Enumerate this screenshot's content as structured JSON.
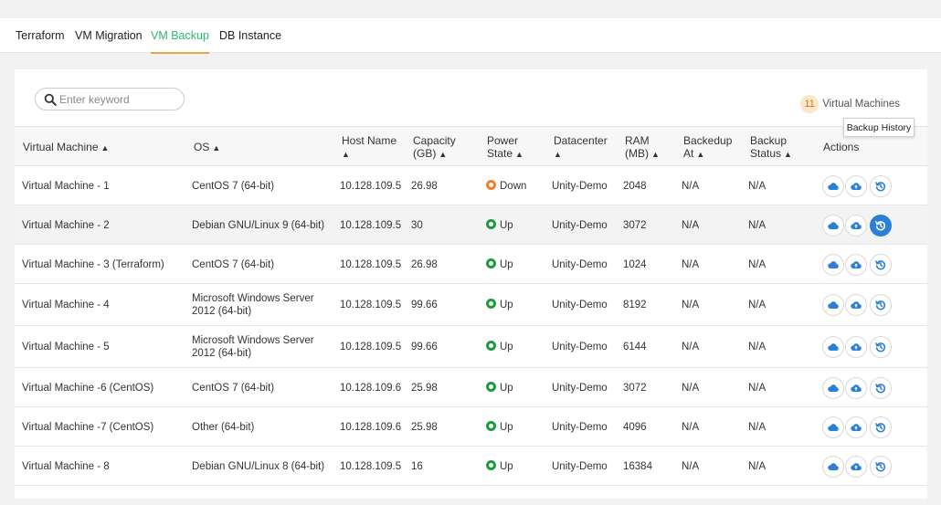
{
  "tabs": [
    {
      "label": "Terraform",
      "active": false
    },
    {
      "label": "VM Migration",
      "active": false
    },
    {
      "label": "VM Backup",
      "active": true
    },
    {
      "label": "DB Instance",
      "active": false
    }
  ],
  "search": {
    "placeholder": "Enter keyword",
    "value": ""
  },
  "vm_count": {
    "count": "11",
    "label": "Virtual Machines"
  },
  "columns": {
    "vm": "Virtual Machine",
    "os": "OS",
    "host": "Host Name",
    "capacity": "Capacity",
    "capacity2": "(GB)",
    "power": "Power",
    "power2": "State",
    "dc": "Datacenter",
    "ram": "RAM",
    "ram2": "(MB)",
    "backedup": "Backedup",
    "backedup2": "At",
    "bstatus": "Backup",
    "bstatus2": "Status",
    "actions": "Actions"
  },
  "rows": [
    {
      "name": "Virtual Machine - 1",
      "os": "CentOS 7 (64-bit)",
      "os2": "",
      "host": "10.128.109.5",
      "capacity": "26.98",
      "power": "Down",
      "dc": "Unity-Demo",
      "ram": "2048",
      "backedup": "N/A",
      "bstatus": "N/A"
    },
    {
      "name": "Virtual Machine - 2",
      "os": "Debian GNU/Linux 9 (64-bit)",
      "os2": "",
      "host": "10.128.109.5",
      "capacity": "30",
      "power": "Up",
      "dc": "Unity-Demo",
      "ram": "3072",
      "backedup": "N/A",
      "bstatus": "N/A"
    },
    {
      "name": "Virtual Machine - 3 (Terraform)",
      "os": "CentOS 7 (64-bit)",
      "os2": "",
      "host": "10.128.109.5",
      "capacity": "26.98",
      "power": "Up",
      "dc": "Unity-Demo",
      "ram": "1024",
      "backedup": "N/A",
      "bstatus": "N/A"
    },
    {
      "name": "Virtual Machine - 4",
      "os": "Microsoft Windows Server",
      "os2": "2012 (64-bit)",
      "host": "10.128.109.5",
      "capacity": "99.66",
      "power": "Up",
      "dc": "Unity-Demo",
      "ram": "8192",
      "backedup": "N/A",
      "bstatus": "N/A"
    },
    {
      "name": "Virtual Machine - 5",
      "os": "Microsoft Windows Server",
      "os2": "2012 (64-bit)",
      "host": "10.128.109.5",
      "capacity": "99.66",
      "power": "Up",
      "dc": "Unity-Demo",
      "ram": "6144",
      "backedup": "N/A",
      "bstatus": "N/A"
    },
    {
      "name": "Virtual Machine -6 (CentOS)",
      "os": "CentOS 7 (64-bit)",
      "os2": "",
      "host": "10.128.109.6",
      "capacity": "25.98",
      "power": "Up",
      "dc": "Unity-Demo",
      "ram": "3072",
      "backedup": "N/A",
      "bstatus": "N/A"
    },
    {
      "name": "Virtual Machine -7 (CentOS)",
      "os": "Other (64-bit)",
      "os2": "",
      "host": "10.128.109.6",
      "capacity": "25.98",
      "power": "Up",
      "dc": "Unity-Demo",
      "ram": "4096",
      "backedup": "N/A",
      "bstatus": "N/A"
    },
    {
      "name": "Virtual Machine - 8",
      "os": "Debian GNU/Linux 8 (64-bit)",
      "os2": "",
      "host": "10.128.109.5",
      "capacity": "16",
      "power": "Up",
      "dc": "Unity-Demo",
      "ram": "16384",
      "backedup": "N/A",
      "bstatus": "N/A"
    }
  ],
  "tooltip": "Backup History",
  "icons": {
    "search": "search-icon",
    "sort": "sort-icon",
    "power_up": "power-up-icon",
    "power_down": "power-down-icon",
    "backup_cloud": "cloud-icon",
    "restore_cloud": "cloud-upload-icon",
    "history": "backup-history-icon"
  },
  "colors": {
    "accent_green": "#2bb673",
    "tab_underline": "#f0a24b",
    "primary_blue": "#2b7fd6",
    "status_up": "#1b9b3d",
    "status_down": "#f0812c"
  }
}
